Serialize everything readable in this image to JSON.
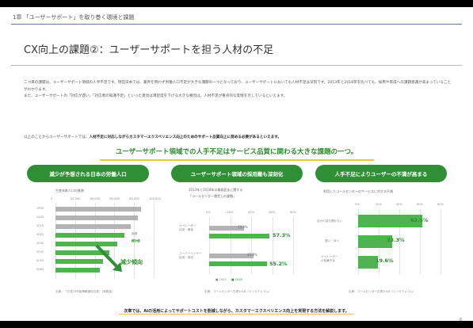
{
  "header": {
    "chapter": "1章 「ユーザーサポート」を取り巻く環境と課題",
    "title": "CX向上の課題②：ユーザーサポートを担う人材の不足"
  },
  "intro": {
    "p1": "二つ目の課題は、ユーザーサポート領域の人手不足です。現在日本では、業界を問わず労働人口不足が大きな課題の一つとなっており、ユーザーサポートにおいても人材不足は深刻です。2013年と2018年を比べても、採用や育成への課題意識が高まっていることがわかります。",
    "p2": "また、ユーザーサポートの「対応が遅い」「対応者の知識不足」といった意見は満足度を下げる大きな要因は、人材不足が重点的な実情を示しているといえます。",
    "p3_prefix": "以上のことからユーザーサポートでは、",
    "p3_bold": "人材不足に対応しながらカスタマーエクスペリエンス向上のためのサポート品質向上に努める必要があるといえます。"
  },
  "headline": "ユーザーサポート領域での人手不足はサービス品質に関わる大きな課題の一つ。",
  "panels": {
    "left": {
      "pill": "減少が予想される日本の労働人口",
      "chart_title": "生産年齢人口の推移",
      "ticks": [
        "0",
        "20,000",
        "40,000",
        "60,000",
        "80,000",
        "100,000"
      ],
      "labels": [
        "1995",
        "2005",
        "2015",
        "2025",
        "2035",
        "2045",
        "2055",
        "2065"
      ],
      "marker_actual": "実績",
      "marker_forecast": "推計値",
      "trend": "減少傾向",
      "source": "出典：「平成29年版情報通信白書」（総務省）"
    },
    "middle": {
      "pill": "ユーザーサポート領域の採用難も深刻化",
      "chart_title": "2013年と2018年の業務変化に関する",
      "chart_subtitle": "「コールセンター運営上の課題」",
      "ticks": [
        "0%",
        "20%",
        "40%",
        "60%",
        "80%"
      ],
      "cat1": [
        "オペレーター",
        "採用・確保"
      ],
      "cat2": [
        "スーパーバイザー",
        "採用・育成"
      ],
      "v1_grey": "33.4%",
      "v1_green": "57.3%",
      "v2_grey": "42.0%",
      "v2_green": "55.2%",
      "legend_grey": "■ 2013",
      "legend_green": "■ 2018",
      "source": "出典：コールセンター白書2018（リックテレコム）"
    },
    "right": {
      "pill": "人手不足によりユーザーの不満が高まる",
      "chart_title": "利用したコールセンターのサービスに対する不満",
      "ticks": [
        "0%",
        "20%",
        "40%",
        "60%",
        "80%"
      ],
      "cat1": "自分の話を聞かない",
      "cat2": "遅い・待つ",
      "cat3": [
        "オペレーター",
        "の知識不足"
      ],
      "v1": "62.5%",
      "v2": "33.3%",
      "v3": "19.6%",
      "source": "出典：コールセンター白書2018（リックテレコム）"
    }
  },
  "chart_data": [
    {
      "type": "bar",
      "orientation": "horizontal",
      "title": "生産年齢人口の推移",
      "categories": [
        "1995",
        "2005",
        "2015",
        "2025",
        "2035",
        "2045",
        "2055",
        "2065"
      ],
      "values": [
        87000,
        84000,
        77000,
        70000,
        63000,
        55000,
        48000,
        45000
      ],
      "xlim": [
        0,
        100000
      ]
    },
    {
      "type": "bar",
      "orientation": "horizontal",
      "title": "2013年と2018年の業務変化に関する「コールセンター運営上の課題」",
      "categories": [
        "オペレーター採用・確保",
        "スーパーバイザー採用・育成"
      ],
      "series": [
        {
          "name": "2013",
          "values": [
            33.4,
            42.0
          ]
        },
        {
          "name": "2018",
          "values": [
            57.3,
            55.2
          ]
        }
      ],
      "xlim": [
        0,
        80
      ]
    },
    {
      "type": "bar",
      "orientation": "horizontal",
      "title": "利用したコールセンターのサービスに対する不満",
      "categories": [
        "自分の話を聞かない",
        "遅い・待つ",
        "オペレーターの知識不足"
      ],
      "values": [
        62.5,
        33.3,
        19.6
      ],
      "xlim": [
        0,
        80
      ]
    }
  ],
  "footer": "次章では、AIの活用によってサポートコストを削減しながら、カスタマーエクスペリエンス向上を実現する方法を解説します。",
  "page_number": "6",
  "colors": {
    "accent_green": "#2f8f35",
    "bar_green": "#4fb34f",
    "bar_grey": "#b3b3b3",
    "underline_yellow": "#e9c93a"
  }
}
